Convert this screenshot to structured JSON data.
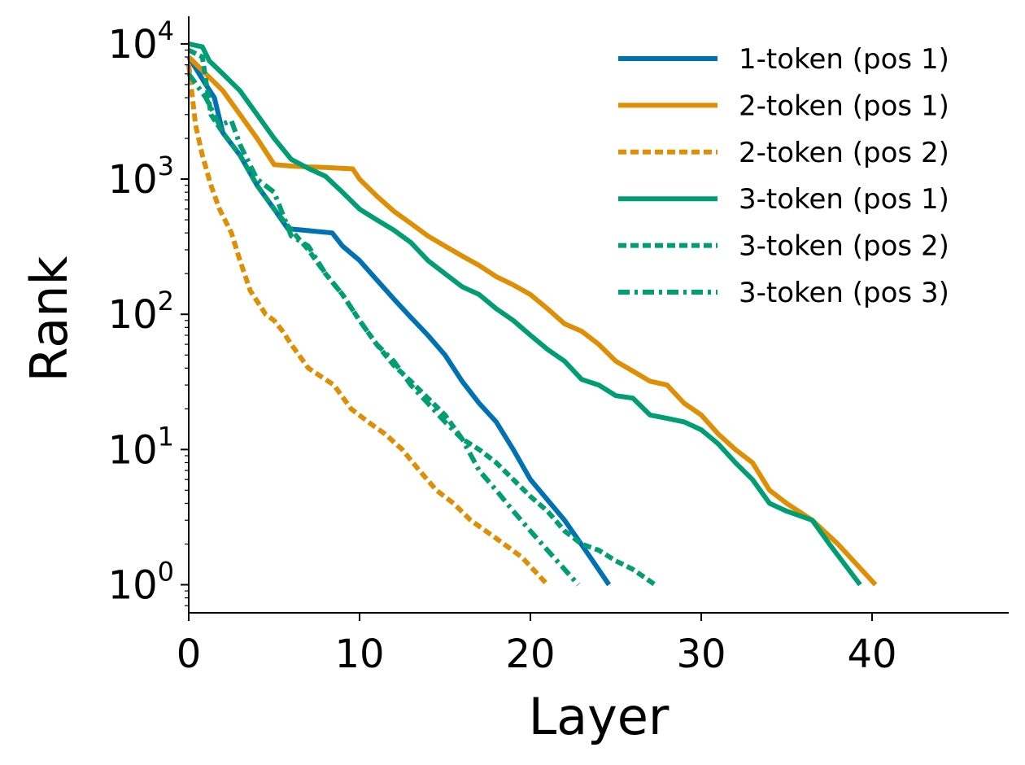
{
  "chart_data": {
    "type": "line",
    "title": "",
    "xlabel": "Layer",
    "ylabel": "Rank",
    "xlim": [
      0,
      48
    ],
    "ylim": [
      0.62,
      16000
    ],
    "yscale": "log",
    "xticks": [
      0,
      10,
      20,
      30,
      40
    ],
    "xtick_labels": [
      "0",
      "10",
      "20",
      "30",
      "40"
    ],
    "yticks": [
      1,
      10,
      100,
      1000,
      10000
    ],
    "ytick_labels": [
      {
        "base": "10",
        "exp": "0"
      },
      {
        "base": "10",
        "exp": "1"
      },
      {
        "base": "10",
        "exp": "2"
      },
      {
        "base": "10",
        "exp": "3"
      },
      {
        "base": "10",
        "exp": "4"
      }
    ],
    "grid": false,
    "legend": "top-right",
    "colors": {
      "blue": "#0072b2",
      "orange": "#de8f05",
      "green": "#029e73"
    },
    "series": [
      {
        "name": "1-token (pos 1)",
        "color": "#0072b2",
        "dash": "solid",
        "points": [
          [
            0,
            8000
          ],
          [
            1,
            5000
          ],
          [
            1.5,
            4000
          ],
          [
            2,
            2200
          ],
          [
            3,
            1500
          ],
          [
            4,
            900
          ],
          [
            5,
            600
          ],
          [
            5.8,
            430
          ],
          [
            8.4,
            400
          ],
          [
            9,
            320
          ],
          [
            10,
            250
          ],
          [
            11,
            180
          ],
          [
            12,
            130
          ],
          [
            13,
            95
          ],
          [
            14,
            70
          ],
          [
            15,
            50
          ],
          [
            16,
            32
          ],
          [
            17,
            22
          ],
          [
            18,
            16
          ],
          [
            19,
            10
          ],
          [
            20,
            6
          ],
          [
            22,
            3
          ],
          [
            23.5,
            1.6
          ],
          [
            24.6,
            1
          ]
        ]
      },
      {
        "name": "2-token (pos 1)",
        "color": "#de8f05",
        "dash": "solid",
        "points": [
          [
            0,
            8000
          ],
          [
            1,
            6000
          ],
          [
            2,
            4500
          ],
          [
            3,
            3000
          ],
          [
            4,
            2000
          ],
          [
            5,
            1280
          ],
          [
            6,
            1250
          ],
          [
            7,
            1230
          ],
          [
            8,
            1220
          ],
          [
            9.6,
            1190
          ],
          [
            10,
            1000
          ],
          [
            11,
            750
          ],
          [
            12,
            580
          ],
          [
            13,
            470
          ],
          [
            14,
            380
          ],
          [
            15,
            320
          ],
          [
            16,
            270
          ],
          [
            17,
            230
          ],
          [
            18,
            190
          ],
          [
            19,
            165
          ],
          [
            20,
            140
          ],
          [
            21,
            110
          ],
          [
            22,
            85
          ],
          [
            23,
            75
          ],
          [
            24,
            60
          ],
          [
            25,
            45
          ],
          [
            26,
            38
          ],
          [
            27,
            32
          ],
          [
            28,
            30
          ],
          [
            29,
            22
          ],
          [
            30,
            18
          ],
          [
            31,
            13
          ],
          [
            32,
            10
          ],
          [
            33,
            8
          ],
          [
            34,
            5
          ],
          [
            35,
            4
          ],
          [
            36.5,
            3
          ],
          [
            38,
            2
          ],
          [
            40.2,
            1
          ]
        ]
      },
      {
        "name": "2-token (pos 2)",
        "color": "#de8f05",
        "dash": "dotted",
        "points": [
          [
            0,
            7000
          ],
          [
            0.4,
            2500
          ],
          [
            0.8,
            1500
          ],
          [
            1.3,
            900
          ],
          [
            1.8,
            600
          ],
          [
            2.5,
            400
          ],
          [
            3,
            250
          ],
          [
            3.6,
            150
          ],
          [
            4.5,
            100
          ],
          [
            5,
            90
          ],
          [
            5.5,
            75
          ],
          [
            6,
            60
          ],
          [
            7,
            40
          ],
          [
            8.5,
            30
          ],
          [
            9.5,
            20
          ],
          [
            10.5,
            16
          ],
          [
            11.5,
            13
          ],
          [
            12.5,
            10
          ],
          [
            13.5,
            7
          ],
          [
            14.5,
            5
          ],
          [
            15.5,
            4
          ],
          [
            16.5,
            3
          ],
          [
            18,
            2.2
          ],
          [
            19.5,
            1.6
          ],
          [
            21,
            1
          ]
        ]
      },
      {
        "name": "3-token (pos 1)",
        "color": "#029e73",
        "dash": "solid",
        "points": [
          [
            0,
            10000
          ],
          [
            0.8,
            9500
          ],
          [
            1.2,
            7500
          ],
          [
            2,
            6000
          ],
          [
            3,
            4500
          ],
          [
            4,
            3000
          ],
          [
            5,
            2000
          ],
          [
            6,
            1400
          ],
          [
            7,
            1200
          ],
          [
            8,
            1050
          ],
          [
            9,
            800
          ],
          [
            10,
            600
          ],
          [
            11,
            500
          ],
          [
            12,
            420
          ],
          [
            13,
            340
          ],
          [
            14,
            250
          ],
          [
            15,
            200
          ],
          [
            16,
            160
          ],
          [
            17,
            140
          ],
          [
            18,
            110
          ],
          [
            19,
            90
          ],
          [
            20,
            70
          ],
          [
            21,
            55
          ],
          [
            22,
            45
          ],
          [
            23,
            33
          ],
          [
            24,
            30
          ],
          [
            25,
            25
          ],
          [
            26,
            24
          ],
          [
            27,
            18
          ],
          [
            28,
            17
          ],
          [
            29,
            16
          ],
          [
            30,
            14
          ],
          [
            31,
            11
          ],
          [
            32,
            8
          ],
          [
            33,
            6
          ],
          [
            34,
            4
          ],
          [
            35,
            3.5
          ],
          [
            36.5,
            3
          ],
          [
            37.5,
            2
          ],
          [
            39.3,
            1
          ]
        ]
      },
      {
        "name": "3-token (pos 2)",
        "color": "#029e73",
        "dash": "dotted",
        "points": [
          [
            0,
            9000
          ],
          [
            0.8,
            8000
          ],
          [
            1.3,
            3000
          ],
          [
            2,
            2200
          ],
          [
            3,
            1500
          ],
          [
            4,
            900
          ],
          [
            5,
            600
          ],
          [
            6,
            420
          ],
          [
            7,
            300
          ],
          [
            8,
            200
          ],
          [
            9,
            140
          ],
          [
            10,
            90
          ],
          [
            11,
            60
          ],
          [
            12,
            42
          ],
          [
            13,
            32
          ],
          [
            14,
            24
          ],
          [
            15,
            18
          ],
          [
            16,
            12
          ],
          [
            17,
            10
          ],
          [
            18,
            8
          ],
          [
            19,
            6
          ],
          [
            20,
            4.5
          ],
          [
            21,
            3.5
          ],
          [
            22,
            2.5
          ],
          [
            23,
            2
          ],
          [
            24,
            1.8
          ],
          [
            25,
            1.5
          ],
          [
            26,
            1.3
          ],
          [
            27.3,
            1
          ]
        ]
      },
      {
        "name": "3-token (pos 3)",
        "color": "#029e73",
        "dash": "dash-dot",
        "points": [
          [
            0,
            6000
          ],
          [
            1,
            4000
          ],
          [
            1.8,
            2500
          ],
          [
            2.5,
            2700
          ],
          [
            3,
            1800
          ],
          [
            4,
            1000
          ],
          [
            5,
            800
          ],
          [
            6,
            380
          ],
          [
            7,
            320
          ],
          [
            8,
            200
          ],
          [
            9,
            140
          ],
          [
            10,
            90
          ],
          [
            11,
            60
          ],
          [
            12,
            45
          ],
          [
            13,
            30
          ],
          [
            14,
            22
          ],
          [
            15,
            16
          ],
          [
            16,
            12
          ],
          [
            17,
            7
          ],
          [
            18,
            5
          ],
          [
            19,
            3.5
          ],
          [
            20,
            2.5
          ],
          [
            21,
            1.8
          ],
          [
            22,
            1.3
          ],
          [
            22.8,
            1
          ]
        ]
      }
    ]
  }
}
